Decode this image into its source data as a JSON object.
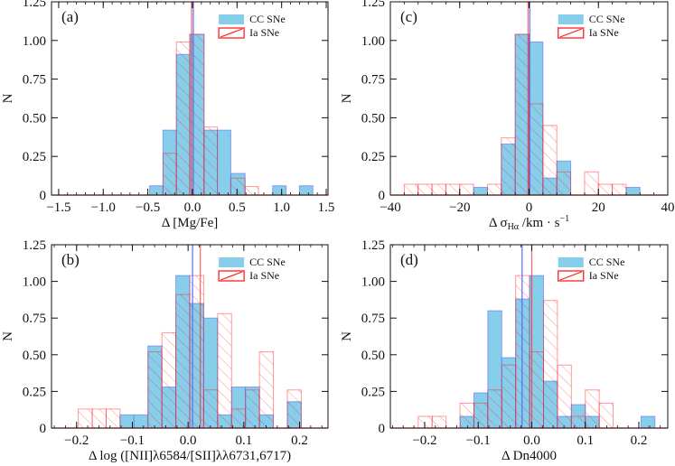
{
  "colors": {
    "cc_fill": "#87ceeb",
    "cc_edge": "#5b6cf5",
    "ia_edge": "#ff2020",
    "ia_hatch": "#ff0000",
    "axis": "#111111"
  },
  "chart_data": [
    {
      "type": "bar",
      "panel_label": "(a)",
      "xlabel": "Δ [Mg/Fe]",
      "ylabel": "N",
      "xlim": [
        -1.58,
        1.52
      ],
      "ylim": [
        0,
        1.25
      ],
      "xticks": [
        -1.5,
        -1.0,
        -0.5,
        0.0,
        0.5,
        1.0,
        1.5
      ],
      "xtick_labels": [
        "−1.5",
        "−1.0",
        "−0.5",
        "0.0",
        "0.5",
        "1.0",
        "1.5"
      ],
      "xminor_step": 0.1,
      "yticks": [
        0,
        0.25,
        0.5,
        0.75,
        1.0,
        1.25
      ],
      "ytick_labels": [
        "0",
        "0.25",
        "0.50",
        "0.75",
        "1.00",
        "1.25"
      ],
      "legend": {
        "position": "top-right",
        "entries": [
          "CC SNe",
          "Ia SNe"
        ]
      },
      "series": [
        {
          "name": "CC SNe",
          "bin_edges": [
            -0.48,
            -0.33,
            -0.18,
            -0.03,
            0.13,
            0.28,
            0.43,
            0.59,
            0.74,
            0.9,
            1.05,
            1.2,
            1.35
          ],
          "values": [
            0.06,
            0.42,
            0.91,
            1.04,
            0.42,
            0.42,
            0.14,
            0,
            0,
            0.06,
            0,
            0.06
          ],
          "median": 0.01
        },
        {
          "name": "Ia SNe",
          "bin_edges": [
            -0.48,
            -0.33,
            -0.18,
            -0.03,
            0.13,
            0.28,
            0.43,
            0.59,
            0.74,
            0.9,
            1.05,
            1.2,
            1.35
          ],
          "values": [
            0,
            0.27,
            0.99,
            1.04,
            0.44,
            0,
            0.11,
            0.055,
            0,
            0,
            0,
            0
          ],
          "median": -0.01
        }
      ]
    },
    {
      "type": "bar",
      "panel_label": "(c)",
      "xlabel_parts": {
        "main": "Δ σ",
        "sub": "Hα",
        "mid": " /km · s",
        "sup": "−1"
      },
      "ylabel": "N",
      "xlim": [
        -40,
        40
      ],
      "ylim": [
        0,
        1.25
      ],
      "xticks": [
        -40,
        -20,
        0,
        20,
        40
      ],
      "xtick_labels": [
        "−40",
        "−20",
        "0",
        "20",
        "40"
      ],
      "xminor_step": 4,
      "yticks": [
        0,
        0.25,
        0.5,
        0.75,
        1.0,
        1.25
      ],
      "ytick_labels": [
        "0",
        "0.25",
        "0.50",
        "0.75",
        "1.00",
        "1.25"
      ],
      "legend": {
        "position": "top-right",
        "entries": [
          "CC SNe",
          "Ia SNe"
        ]
      },
      "series": [
        {
          "name": "CC SNe",
          "bin_edges": [
            -36,
            -32,
            -28,
            -24,
            -20,
            -16,
            -12,
            -8,
            -4,
            0,
            4,
            8,
            12,
            16,
            20,
            24,
            28,
            32
          ],
          "values": [
            0,
            0,
            0,
            0,
            0,
            0.05,
            0,
            0.33,
            1.04,
            0.99,
            0.11,
            0.22,
            0,
            0,
            0,
            0,
            0.05
          ],
          "median": 0.2
        },
        {
          "name": "Ia SNe",
          "bin_edges": [
            -36,
            -32,
            -28,
            -24,
            -20,
            -16,
            -12,
            -8,
            -4,
            0,
            4,
            8,
            12,
            16,
            20,
            24,
            28,
            32
          ],
          "values": [
            0.07,
            0.07,
            0.07,
            0.07,
            0.07,
            0,
            0.07,
            0.37,
            1.04,
            0.59,
            0.45,
            0.15,
            0,
            0.15,
            0.07,
            0.07,
            0
          ],
          "median": -0.3
        }
      ]
    },
    {
      "type": "bar",
      "panel_label": "(b)",
      "xlabel": "Δ log ([NII]λ6584/[SII]λλ6731,6717)",
      "ylabel": "N",
      "xlim": [
        -0.245,
        0.251
      ],
      "ylim": [
        0,
        1.25
      ],
      "xticks": [
        -0.2,
        -0.1,
        0.0,
        0.1,
        0.2
      ],
      "xtick_labels": [
        "−0.2",
        "−0.1",
        "0.0",
        "0.1",
        "0.2"
      ],
      "xminor_step": 0.02,
      "yticks": [
        0,
        0.25,
        0.5,
        0.75,
        1.0,
        1.25
      ],
      "ytick_labels": [
        "0",
        "0.25",
        "0.50",
        "0.75",
        "1.00",
        "1.25"
      ],
      "legend": {
        "position": "top-right",
        "entries": [
          "CC SNe",
          "Ia SNe"
        ]
      },
      "series": [
        {
          "name": "CC SNe",
          "bin_edges": [
            -0.197,
            -0.172,
            -0.147,
            -0.122,
            -0.097,
            -0.072,
            -0.047,
            -0.022,
            0.003,
            0.028,
            0.053,
            0.078,
            0.103,
            0.128,
            0.153,
            0.178,
            0.203
          ],
          "values": [
            0,
            0,
            0,
            0.09,
            0.09,
            0.56,
            0.28,
            1.04,
            0.85,
            0.75,
            0.09,
            0.28,
            0.28,
            0.09,
            0,
            0.18
          ],
          "median": 0.008
        },
        {
          "name": "Ia SNe",
          "bin_edges": [
            -0.197,
            -0.172,
            -0.147,
            -0.122,
            -0.097,
            -0.072,
            -0.047,
            -0.022,
            0.003,
            0.028,
            0.053,
            0.078,
            0.103,
            0.128,
            0.153,
            0.178,
            0.203
          ],
          "values": [
            0.13,
            0.13,
            0.13,
            0,
            0,
            0.52,
            0.65,
            0.91,
            1.04,
            0.26,
            0.78,
            0.13,
            0.26,
            0.52,
            0,
            0.26
          ],
          "median": 0.022
        }
      ]
    },
    {
      "type": "bar",
      "panel_label": "(d)",
      "xlabel": "Δ Dn4000",
      "ylabel": "N",
      "xlim": [
        -0.264,
        0.254
      ],
      "ylim": [
        0,
        1.25
      ],
      "xticks": [
        -0.2,
        -0.1,
        0.0,
        0.1,
        0.2
      ],
      "xtick_labels": [
        "−0.2",
        "−0.1",
        "0.0",
        "0.1",
        "0.2"
      ],
      "xminor_step": 0.02,
      "yticks": [
        0,
        0.25,
        0.5,
        0.75,
        1.0,
        1.25
      ],
      "ytick_labels": [
        "0",
        "0.25",
        "0.50",
        "0.75",
        "1.00",
        "1.25"
      ],
      "legend": {
        "position": "top-right",
        "entries": [
          "CC SNe",
          "Ia SNe"
        ]
      },
      "series": [
        {
          "name": "CC SNe",
          "bin_edges": [
            -0.212,
            -0.186,
            -0.16,
            -0.134,
            -0.108,
            -0.082,
            -0.056,
            -0.03,
            -0.004,
            0.022,
            0.048,
            0.074,
            0.1,
            0.126,
            0.152,
            0.178,
            0.204,
            0.23
          ],
          "values": [
            0,
            0,
            0,
            0.08,
            0.24,
            0.8,
            0.48,
            0.88,
            1.04,
            0.32,
            0.08,
            0.16,
            0.08,
            0,
            0,
            0,
            0.08
          ],
          "median": -0.018
        },
        {
          "name": "Ia SNe",
          "bin_edges": [
            -0.212,
            -0.186,
            -0.16,
            -0.134,
            -0.108,
            -0.082,
            -0.056,
            -0.03,
            -0.004,
            0.022,
            0.048,
            0.074,
            0.1,
            0.126,
            0.152,
            0.178,
            0.204,
            0.23
          ],
          "values": [
            0.08,
            0.08,
            0,
            0.17,
            0.17,
            0.26,
            0.43,
            1.04,
            0.52,
            0.87,
            0.43,
            0.08,
            0.26,
            0.17,
            0,
            0,
            0
          ],
          "median": 0.0
        }
      ]
    }
  ]
}
